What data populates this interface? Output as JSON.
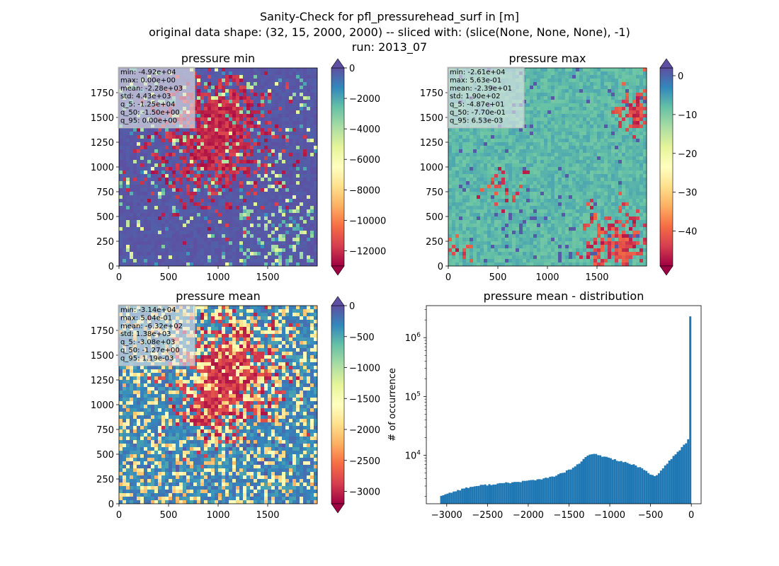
{
  "figure": {
    "suptitle_lines": [
      "Sanity-Check for pfl_pressurehead_surf in [m]",
      "original data shape: (32, 15, 2000, 2000) -- sliced with: (slice(None, None, None), -1)",
      "run: 2013_07"
    ]
  },
  "chart_data": [
    {
      "type": "heatmap",
      "title": "pressure min",
      "xlim": [
        0,
        2000
      ],
      "ylim": [
        0,
        2000
      ],
      "xticks": [
        0,
        500,
        1000,
        1500
      ],
      "yticks": [
        0,
        250,
        500,
        750,
        1000,
        1250,
        1500,
        1750
      ],
      "colormap": "Spectral",
      "colorbar": {
        "range": [
          -13000,
          0
        ],
        "ticks": [
          0,
          -2000,
          -4000,
          -6000,
          -8000,
          -10000,
          -12000
        ],
        "extend": "both"
      },
      "stats": [
        "min: -4.92e+04",
        "max: 0.00e+00",
        "mean: -2.28e+03",
        "std: 4.43e+03",
        "q_5: -1.25e+04",
        "q_50: -1.50e+00",
        "q_95: 0.00e+00"
      ]
    },
    {
      "type": "heatmap",
      "title": "pressure max",
      "xlim": [
        0,
        2000
      ],
      "ylim": [
        0,
        2000
      ],
      "xticks": [
        0,
        500,
        1000,
        1500
      ],
      "yticks": [
        0,
        250,
        500,
        750,
        1000,
        1250,
        1500,
        1750
      ],
      "colormap": "Spectral",
      "colorbar": {
        "range": [
          -49,
          2
        ],
        "ticks": [
          0,
          -10,
          -20,
          -30,
          -40
        ],
        "extend": "both"
      },
      "stats": [
        "min: -2.61e+04",
        "max: 5.63e-01",
        "mean: -2.39e+01",
        "std: 1.90e+02",
        "q_5: -4.87e+01",
        "q_50: -7.70e-01",
        "q_95: 6.53e-03"
      ]
    },
    {
      "type": "heatmap",
      "title": "pressure mean",
      "xlim": [
        0,
        2000
      ],
      "ylim": [
        0,
        2000
      ],
      "xticks": [
        0,
        500,
        1000,
        1500
      ],
      "yticks": [
        0,
        250,
        500,
        750,
        1000,
        1250,
        1500,
        1750
      ],
      "colormap": "Spectral",
      "colorbar": {
        "range": [
          -3200,
          0
        ],
        "ticks": [
          0,
          -500,
          -1000,
          -1500,
          -2000,
          -2500,
          -3000
        ],
        "extend": "both"
      },
      "stats": [
        "min: -3.14e+04",
        "max: 5.04e-01",
        "mean: -6.32e+02",
        "std: 1.38e+03",
        "q_5: -3.08e+03",
        "q_50: -1.27e+00",
        "q_95: 1.19e-03"
      ]
    },
    {
      "type": "histogram",
      "title": "pressure mean - distribution",
      "xlabel": "",
      "ylabel": "# of occurrence",
      "xlim": [
        -3250,
        120
      ],
      "ylim": [
        1500,
        3500000
      ],
      "yscale": "log",
      "xticks": [
        -3000,
        -2500,
        -2000,
        -1500,
        -1000,
        -500,
        0
      ],
      "yticks": [
        10000,
        100000,
        1000000
      ],
      "color": "#1f77b4",
      "x": [
        -3080,
        -3000,
        -2900,
        -2800,
        -2700,
        -2600,
        -2500,
        -2400,
        -2300,
        -2200,
        -2100,
        -2000,
        -1900,
        -1800,
        -1700,
        -1600,
        -1500,
        -1400,
        -1350,
        -1300,
        -1250,
        -1200,
        -1150,
        -1100,
        -1050,
        -1000,
        -950,
        -900,
        -850,
        -800,
        -750,
        -700,
        -650,
        -600,
        -550,
        -500,
        -450,
        -400,
        -350,
        -300,
        -250,
        -200,
        -150,
        -100,
        -60,
        -40,
        -20,
        -10,
        -5,
        -2,
        0
      ],
      "values": [
        2050,
        2200,
        2450,
        2700,
        2900,
        3050,
        3150,
        3250,
        3350,
        3450,
        3550,
        3700,
        3850,
        4000,
        4350,
        4850,
        5600,
        6800,
        7800,
        9100,
        10200,
        10600,
        10100,
        9700,
        9400,
        9000,
        8500,
        8200,
        7800,
        7500,
        7100,
        6800,
        6200,
        6000,
        5300,
        4700,
        4500,
        4900,
        5800,
        7200,
        8400,
        10200,
        12000,
        14500,
        16500,
        18500,
        20500,
        23000,
        33500,
        34000,
        2300000
      ]
    }
  ]
}
